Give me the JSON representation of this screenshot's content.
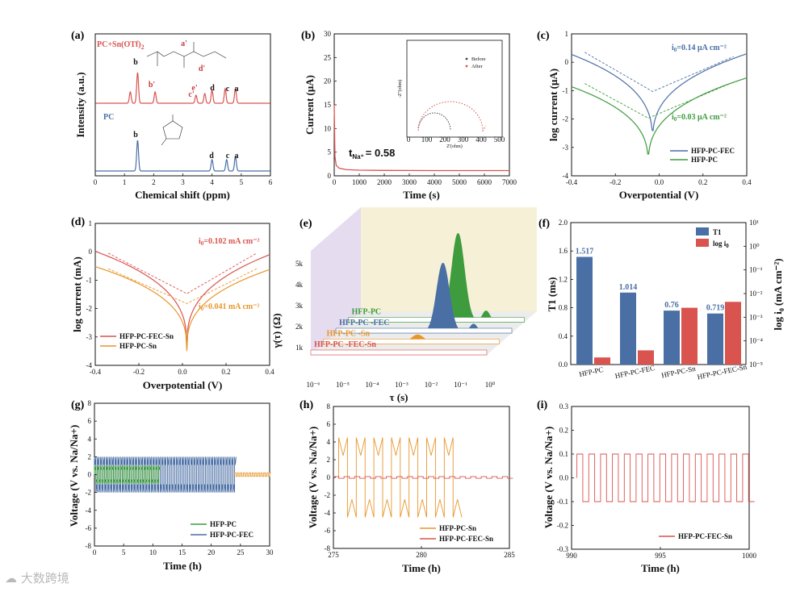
{
  "colors": {
    "blue": "#4a6fa5",
    "green": "#3e9b3e",
    "red": "#d9534f",
    "orange": "#e8962b",
    "darkred": "#c73b3b",
    "grey": "#888888"
  },
  "watermark": "大数跨境",
  "chart_data": [
    {
      "panel": "(a)",
      "type": "line",
      "title": "",
      "xlabel": "Chemical shift (ppm)",
      "ylabel": "Intensity (a.u.)",
      "xlim": [
        0,
        6
      ],
      "xticks": [
        "0",
        "1",
        "2",
        "3",
        "4",
        "5",
        "6"
      ],
      "series": [
        {
          "name": "PC+Sn(OTf)2",
          "color": "#d9534f",
          "peaks": [
            [
              1.2,
              0.35
            ],
            [
              1.45,
              0.95
            ],
            [
              2.05,
              0.35
            ],
            [
              3.45,
              0.25
            ],
            [
              3.75,
              0.3
            ],
            [
              4.0,
              0.4
            ],
            [
              4.45,
              0.45
            ],
            [
              4.8,
              0.45
            ]
          ]
        },
        {
          "name": "PC",
          "color": "#4a6fa5",
          "peaks": [
            [
              1.45,
              0.95
            ],
            [
              4.0,
              0.35
            ],
            [
              4.5,
              0.35
            ],
            [
              4.8,
              0.45
            ]
          ]
        }
      ],
      "annotations": [
        "b",
        "b'",
        "a'",
        "c'",
        "d'",
        "e'",
        "d",
        "c",
        "a",
        "b",
        "d",
        "c",
        "a"
      ]
    },
    {
      "panel": "(b)",
      "type": "line",
      "xlabel": "Time (s)",
      "ylabel": "Current (μA)",
      "xlim": [
        0,
        7000
      ],
      "ylim": [
        0,
        30
      ],
      "xticks": [
        "0",
        "1000",
        "2000",
        "3000",
        "4000",
        "5000",
        "6000",
        "7000"
      ],
      "yticks": [
        "0",
        "5",
        "10",
        "15",
        "20",
        "25",
        "30"
      ],
      "annotation": "t",
      "annotation_sub": "Na⁺",
      "annotation_value": "= 0.58",
      "series": [
        {
          "name": "current",
          "color": "#d9534f",
          "x": [
            0,
            30,
            80,
            200,
            500,
            1000,
            2000,
            4000,
            7000
          ],
          "y": [
            15,
            4,
            2.2,
            1.6,
            1.3,
            1.2,
            1.15,
            1.1,
            1.1
          ]
        }
      ],
      "inset": {
        "xlabel": "Z'(ohm)",
        "ylabel": "-Z''(ohm)",
        "legend": [
          "Before",
          "After"
        ],
        "xticks": [
          "0",
          "100",
          "200",
          "300",
          "400",
          "500"
        ]
      }
    },
    {
      "panel": "(c)",
      "type": "line",
      "xlabel": "Overpotential (V)",
      "ylabel": "log current (μA)",
      "xlim": [
        -0.4,
        0.4
      ],
      "ylim": [
        -4,
        1
      ],
      "xticks": [
        "-0.4",
        "-0.2",
        "0.0",
        "0.2",
        "0.4"
      ],
      "yticks": [
        "-4",
        "-3",
        "-2",
        "-1",
        "0",
        "1"
      ],
      "annotations": [
        {
          "pre": "i",
          "sub": "0",
          "text": "=0.14 μA cm⁻²",
          "color": "#4a6fa5"
        },
        {
          "pre": "i",
          "sub": "0",
          "text": "=0.03 μA cm⁻²",
          "color": "#3e9b3e"
        }
      ],
      "series": [
        {
          "name": "HFP-PC-FEC",
          "color": "#4a6fa5",
          "e0": -0.03,
          "ymin": -2.9,
          "left": 0.5,
          "right": 0.35
        },
        {
          "name": "HFP-PC",
          "color": "#3e9b3e",
          "e0": -0.05,
          "ymin": -3.7,
          "left": -0.6,
          "right": -0.55
        }
      ]
    },
    {
      "panel": "(d)",
      "type": "line",
      "xlabel": "Overpotential (V)",
      "ylabel": "log current (mA)",
      "xlim": [
        -0.4,
        0.4
      ],
      "ylim": [
        -4,
        1
      ],
      "xticks": [
        "-0.4",
        "-0.2",
        "0.0",
        "0.2",
        "0.4"
      ],
      "yticks": [
        "-4",
        "-3",
        "-2",
        "-1",
        "0",
        "1"
      ],
      "annotations": [
        {
          "pre": "i",
          "sub": "0",
          "text": "=0.102 mA cm⁻²",
          "color": "#d9534f"
        },
        {
          "pre": "i",
          "sub": "0",
          "text": "=0.041 mA cm⁻²",
          "color": "#e8962b"
        }
      ],
      "series": [
        {
          "name": "HFP-PC-FEC-Sn",
          "color": "#d9534f",
          "e0": 0.02,
          "ymin": -3.4,
          "left": 0.1,
          "right": 0.1
        },
        {
          "name": "HFP-PC-Sn",
          "color": "#e8962b",
          "e0": 0.02,
          "ymin": -3.5,
          "left": -0.45,
          "right": -0.45
        }
      ]
    },
    {
      "panel": "(e)",
      "type": "area",
      "xlabel": "τ (s)",
      "ylabel": "γ(τ) (Ω)",
      "xticks": [
        "10⁻⁶",
        "10⁻⁵",
        "10⁻⁴",
        "10⁻³",
        "10⁻²",
        "10⁻¹",
        "10⁰"
      ],
      "yticks": [
        "1k",
        "2k",
        "3k",
        "4k",
        "5k"
      ],
      "series": [
        {
          "name": "HFP-PC",
          "color": "#3e9b3e",
          "peak_log_tau": -2.0,
          "peak": 4200
        },
        {
          "name": "HFP-PC -FEC",
          "color": "#4a6fa5",
          "peak_log_tau": -2.1,
          "peak": 3300
        },
        {
          "name": "HFP-PC -Sn",
          "color": "#e8962b",
          "peak_log_tau": -2.6,
          "peak": 400
        },
        {
          "name": "HFP-PC -FEC-Sn",
          "color": "#d9534f",
          "peak_log_tau": -1.3,
          "peak": 150
        }
      ]
    },
    {
      "panel": "(f)",
      "type": "bar",
      "categories": [
        "HFP-PC",
        "HFP-PC-FEC",
        "HFP-PC-Sn",
        "HFP-PC-FEC-Sn"
      ],
      "ylabel": "T1 (ms)",
      "y2label": "log i",
      "y2label_sub": "0",
      "y2label_units": "(mA cm⁻²)",
      "ylim": [
        0,
        2.0
      ],
      "yticks": [
        "0.0",
        "0.4",
        "0.8",
        "1.2",
        "1.6",
        "2.0"
      ],
      "y2ticks": [
        "10⁻⁵",
        "10⁻⁴",
        "10⁻³",
        "10⁻²",
        "10⁻¹",
        "10⁰",
        "10¹"
      ],
      "legend_t1": "T1",
      "legend_log": "log i",
      "legend_log_sub": "0",
      "series": [
        {
          "name": "T1",
          "color": "#4a6fa5",
          "values": [
            1.517,
            1.014,
            0.76,
            0.719
          ],
          "labels": [
            "1.517",
            "1.014",
            "0.76",
            "0.719"
          ]
        },
        {
          "name": "log i0",
          "color": "#d9534f",
          "values": [
            -4.7,
            -4.4,
            -2.6,
            -2.35
          ]
        }
      ]
    },
    {
      "panel": "(g)",
      "type": "line",
      "xlabel": "Time (h)",
      "ylabel": "Voltage (V vs. Na/Na+)",
      "xlim": [
        0,
        30
      ],
      "ylim": [
        -8,
        8
      ],
      "xticks": [
        "0",
        "5",
        "10",
        "15",
        "20",
        "25",
        "30"
      ],
      "yticks": [
        "-8",
        "-6",
        "-4",
        "-2",
        "0",
        "2",
        "4",
        "6",
        "8"
      ],
      "series": [
        {
          "name": "HFP-PC",
          "color": "#3e9b3e",
          "t_end": 11,
          "amp": 1.0
        },
        {
          "name": "HFP-PC-FEC",
          "color": "#4a6fa5",
          "t_end": 24,
          "amp": 2.0
        }
      ]
    },
    {
      "panel": "(h)",
      "type": "line",
      "xlabel": "Time (h)",
      "ylabel": "Voltage (V vs. Na/Na+)",
      "xlim": [
        275,
        285
      ],
      "ylim": [
        -8,
        8
      ],
      "xticks": [
        "275",
        "280",
        "285"
      ],
      "yticks": [
        "-8",
        "-6",
        "-4",
        "-2",
        "0",
        "2",
        "4",
        "6",
        "8"
      ],
      "series": [
        {
          "name": "HFP-PC-Sn",
          "color": "#e8962b",
          "t_end": 282,
          "amp": 4.5
        },
        {
          "name": "HFP-PC-FEC-Sn",
          "color": "#d9534f",
          "amp": 0.1
        }
      ]
    },
    {
      "panel": "(i)",
      "type": "line",
      "xlabel": "Time (h)",
      "ylabel": "Voltage (V vs. Na/Na+)",
      "xlim": [
        990,
        1000
      ],
      "ylim": [
        -0.3,
        0.3
      ],
      "xticks": [
        "990",
        "995",
        "1000"
      ],
      "yticks": [
        "-0.3",
        "-0.2",
        "-0.1",
        "0.0",
        "0.1",
        "0.2",
        "0.3"
      ],
      "series": [
        {
          "name": "HFP-PC-FEC-Sn",
          "color": "#d9534f",
          "amp": 0.1,
          "cycles": 15
        }
      ]
    }
  ]
}
